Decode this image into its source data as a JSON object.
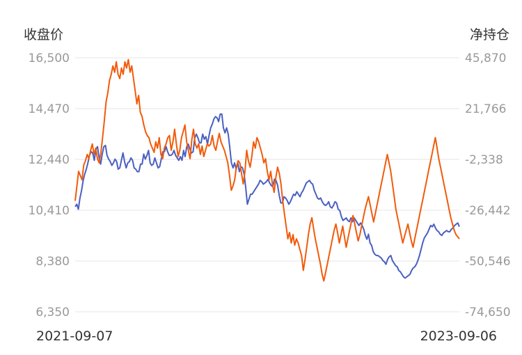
{
  "chart_data": {
    "type": "line",
    "left_axis_title": "收盘价",
    "right_axis_title": "净持仓",
    "left_ticks": [
      "16,500",
      "14,470",
      "12,440",
      "10,410",
      "8,380",
      "6,350"
    ],
    "right_ticks": [
      "45,870",
      "21,766",
      "-2,338",
      "-26,442",
      "-50,546",
      "-74,650"
    ],
    "ylim_left": [
      6350,
      16500
    ],
    "ylim_right": [
      -74650,
      45870
    ],
    "x_start_label": "2021-09-07",
    "x_end_label": "2023-09-06",
    "grid": true,
    "series": [
      {
        "axis": "left",
        "color": "#4a5fc1",
        "values": [
          10550,
          10650,
          10450,
          10900,
          11200,
          11600,
          11850,
          12050,
          12300,
          12600,
          12750,
          12700,
          12400,
          12850,
          12950,
          12500,
          12250,
          12650,
          12950,
          13000,
          12600,
          12450,
          12350,
          12200,
          12300,
          12450,
          12350,
          12050,
          12100,
          12400,
          12700,
          12350,
          12100,
          12300,
          12350,
          12500,
          12400,
          12100,
          12050,
          11950,
          11950,
          12250,
          12250,
          12650,
          12450,
          12600,
          12800,
          12300,
          12200,
          12250,
          12500,
          12300,
          12100,
          12150,
          12450,
          12750,
          12750,
          12950,
          12750,
          12600,
          12600,
          12650,
          12800,
          12600,
          12500,
          12400,
          12550,
          12400,
          12800,
          12550,
          12950,
          13050,
          12850,
          12700,
          12750,
          13300,
          13450,
          13300,
          13100,
          13100,
          13450,
          13250,
          13350,
          13050,
          13400,
          13700,
          13850,
          14050,
          14150,
          14100,
          13950,
          14250,
          14250,
          13700,
          13500,
          13700,
          13450,
          12900,
          12300,
          12100,
          12300,
          12050,
          12300,
          11950,
          12150,
          12100,
          11850,
          11300,
          10650,
          10850,
          11050,
          11050,
          11150,
          11250,
          11350,
          11450,
          11600,
          11550,
          11450,
          11500,
          11550,
          11650,
          11500,
          11400,
          11350,
          11650,
          11600,
          11400,
          11000,
          10700,
          10700,
          10950,
          10900,
          10800,
          10650,
          10750,
          10900,
          11050,
          11000,
          11150,
          11050,
          10950,
          11100,
          11200,
          11350,
          11500,
          11550,
          11600,
          11500,
          11450,
          11200,
          11050,
          10900,
          10850,
          10900,
          10750,
          10650,
          10600,
          10650,
          10750,
          10550,
          10500,
          10600,
          10750,
          10700,
          10450,
          10400,
          10150,
          10000,
          10050,
          10100,
          10000,
          9950,
          10100,
          9950,
          10100,
          10000,
          9900,
          9800,
          9900,
          9800,
          9650,
          9400,
          9250,
          9450,
          9100,
          9000,
          8750,
          8650,
          8600,
          8600,
          8550,
          8500,
          8400,
          8350,
          8250,
          8450,
          8550,
          8600,
          8400,
          8300,
          8200,
          8150,
          8000,
          7950,
          7850,
          7750,
          7700,
          7750,
          7800,
          7850,
          8000,
          8100,
          8150,
          8250,
          8400,
          8600,
          8850,
          9100,
          9300,
          9400,
          9500,
          9650,
          9800,
          9750,
          9850,
          9700,
          9600,
          9550,
          9450,
          9400,
          9500,
          9550,
          9600,
          9550,
          9550,
          9650,
          9700,
          9800,
          9850,
          9900,
          9750
        ]
      },
      {
        "axis": "right",
        "color": "#f25a0a",
        "values": [
          -22000,
          -15000,
          -8000,
          -10000,
          -12000,
          -5000,
          -3000,
          0,
          -2000,
          2000,
          5000,
          0,
          3000,
          -2000,
          -4000,
          1000,
          8000,
          16000,
          25000,
          29000,
          35000,
          38000,
          42000,
          39000,
          44000,
          38000,
          36000,
          41000,
          38000,
          44000,
          41000,
          45000,
          39000,
          42000,
          36000,
          30000,
          24000,
          28000,
          20000,
          18000,
          14000,
          11000,
          9000,
          8000,
          5000,
          3000,
          1000,
          6000,
          3000,
          8000,
          0,
          -2000,
          3000,
          5000,
          8000,
          9000,
          2000,
          6000,
          12000,
          5000,
          -1000,
          2000,
          8000,
          11000,
          14000,
          6000,
          2000,
          -2000,
          7000,
          12000,
          5000,
          3000,
          5000,
          0,
          4000,
          -1000,
          2000,
          5000,
          4000,
          5000,
          9000,
          4000,
          2000,
          6000,
          10000,
          6000,
          4000,
          2000,
          -1000,
          -4000,
          -10000,
          -17000,
          -15000,
          -12000,
          -6000,
          -3000,
          -4000,
          -9000,
          -14000,
          -8000,
          2000,
          -3000,
          -6000,
          -1000,
          6000,
          3000,
          8000,
          6000,
          3000,
          0,
          -4000,
          -2000,
          -8000,
          -12000,
          -8000,
          -14000,
          -18000,
          -11000,
          -6000,
          -9000,
          -14000,
          -22000,
          -28000,
          -34000,
          -40000,
          -37000,
          -42000,
          -38000,
          -43000,
          -40000,
          -42000,
          -45000,
          -48000,
          -55000,
          -50000,
          -44000,
          -38000,
          -33000,
          -30000,
          -35000,
          -40000,
          -44000,
          -48000,
          -52000,
          -57000,
          -60000,
          -56000,
          -52000,
          -48000,
          -44000,
          -40000,
          -36000,
          -33000,
          -37000,
          -42000,
          -38000,
          -34000,
          -39000,
          -44000,
          -40000,
          -36000,
          -32000,
          -29000,
          -33000,
          -37000,
          -41000,
          -38000,
          -34000,
          -30000,
          -26000,
          -23000,
          -20000,
          -24000,
          -28000,
          -32000,
          -28000,
          -24000,
          -20000,
          -16000,
          -12000,
          -8000,
          -4000,
          0,
          -4000,
          -8000,
          -14000,
          -20000,
          -26000,
          -30000,
          -34000,
          -38000,
          -42000,
          -39000,
          -36000,
          -33000,
          -37000,
          -41000,
          -44000,
          -40000,
          -36000,
          -32000,
          -28000,
          -24000,
          -20000,
          -16000,
          -12000,
          -8000,
          -4000,
          0,
          4000,
          8000,
          3000,
          -2000,
          -6000,
          -10000,
          -14000,
          -18000,
          -22000,
          -26000,
          -30000,
          -33000,
          -36000,
          -38000,
          -39000,
          -40000
        ]
      }
    ]
  }
}
